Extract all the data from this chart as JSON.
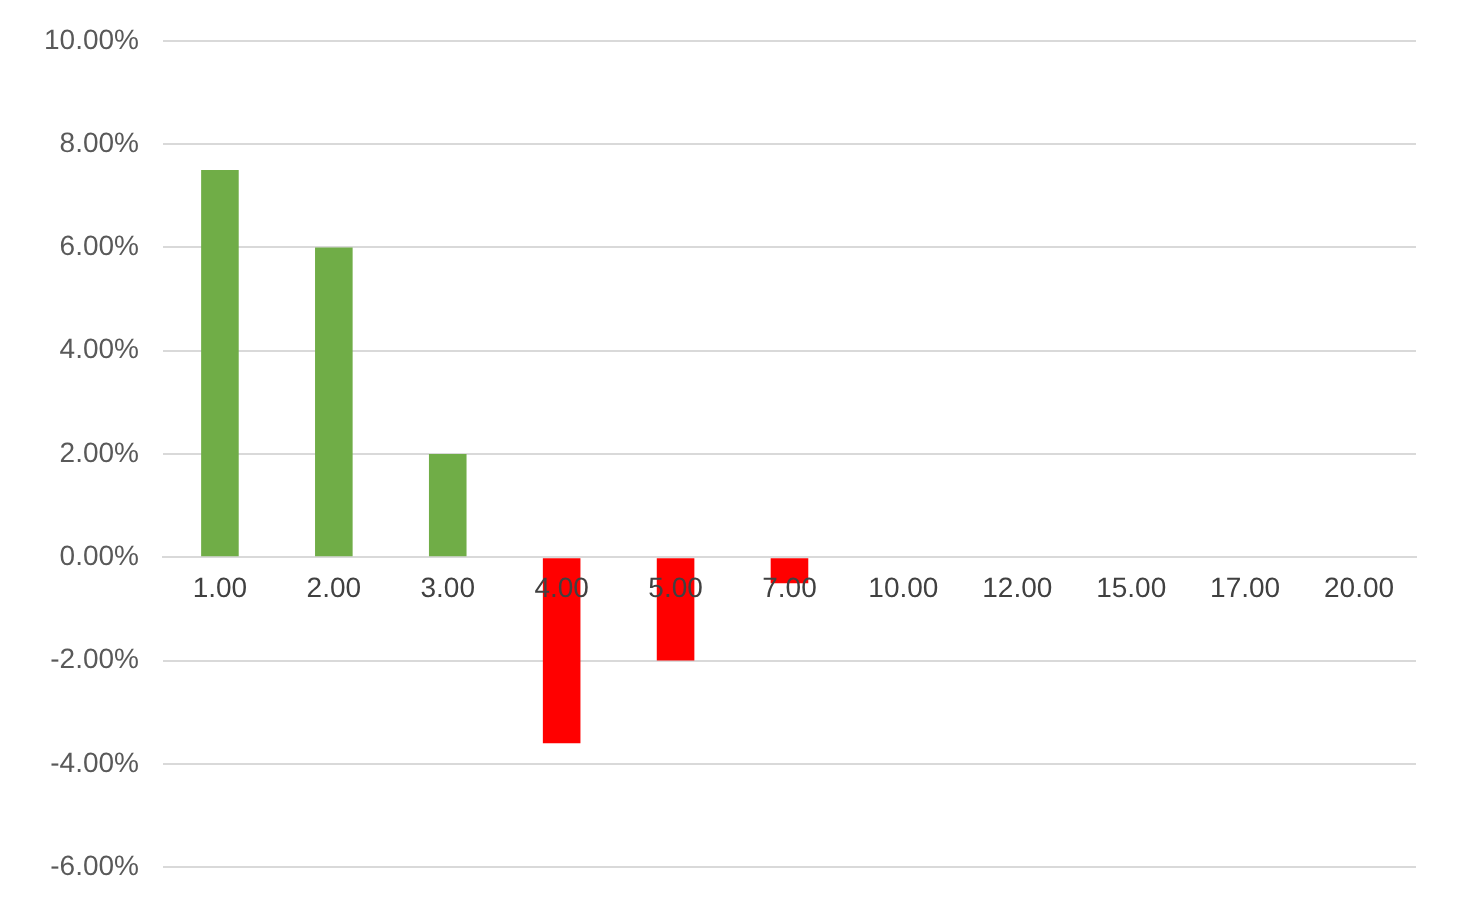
{
  "chart_data": {
    "type": "bar",
    "categories": [
      "1.00",
      "2.00",
      "3.00",
      "4.00",
      "5.00",
      "7.00",
      "10.00",
      "12.00",
      "15.00",
      "17.00",
      "20.00"
    ],
    "values": [
      7.5,
      6.0,
      2.0,
      -3.6,
      -2.0,
      -0.5,
      null,
      null,
      null,
      null,
      null
    ],
    "colors": [
      "#70ad47",
      "#70ad47",
      "#70ad47",
      "#ff0000",
      "#ff0000",
      "#ff0000",
      "#ff0000",
      "#ff0000",
      "#ff0000",
      "#ff0000",
      "#ff0000"
    ],
    "ylim": [
      -6,
      10
    ],
    "yticks": [
      {
        "value": -6,
        "label": "-6.00%"
      },
      {
        "value": -4,
        "label": "-4.00%"
      },
      {
        "value": -2,
        "label": "-2.00%"
      },
      {
        "value": 0,
        "label": "0.00%"
      },
      {
        "value": 2,
        "label": "2.00%"
      },
      {
        "value": 4,
        "label": "4.00%"
      },
      {
        "value": 6,
        "label": "6.00%"
      },
      {
        "value": 8,
        "label": "8.00%"
      },
      {
        "value": 10,
        "label": "10.00%"
      }
    ],
    "grid": "y",
    "legend": false
  }
}
